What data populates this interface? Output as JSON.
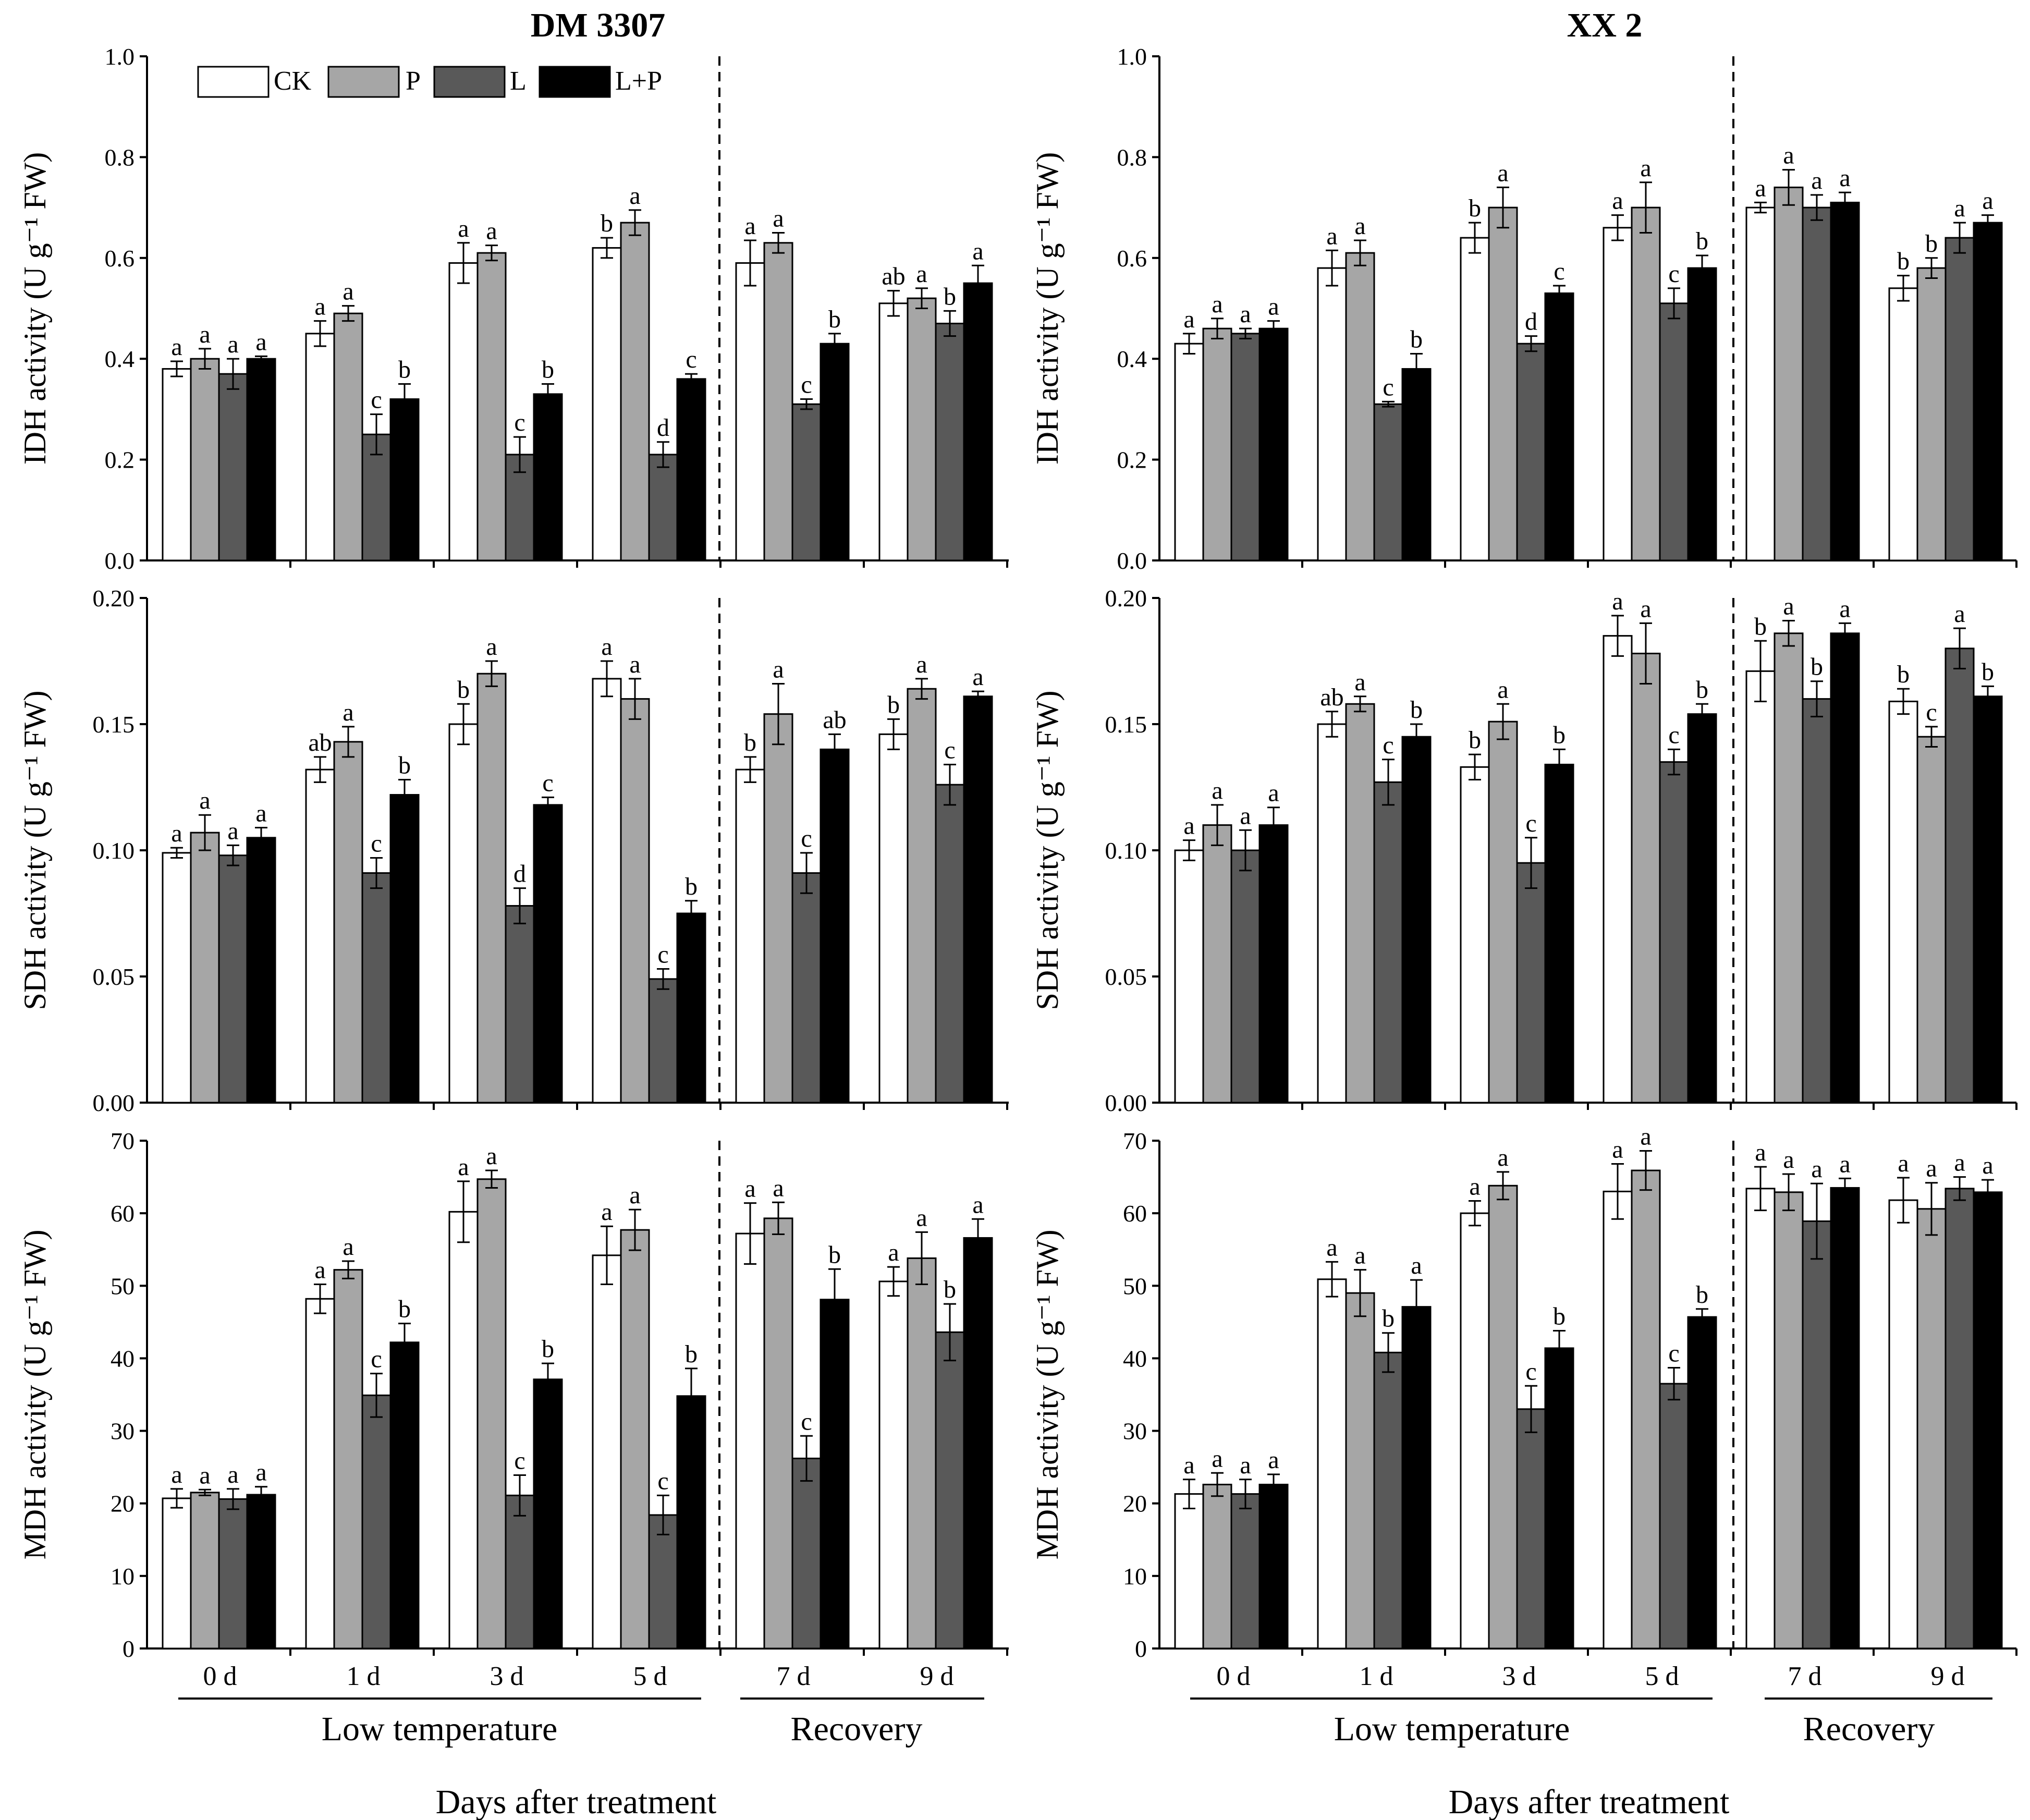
{
  "colors": {
    "CK": "#ffffff",
    "P": "#a6a6a6",
    "L": "#595959",
    "L+P": "#000000"
  },
  "legend": [
    "CK",
    "P",
    "L",
    "L+P"
  ],
  "days": [
    "0 d",
    "1 d",
    "3 d",
    "5 d",
    "7 d",
    "9 d"
  ],
  "groups": {
    "low": "Low temperature",
    "recovery": "Recovery"
  },
  "xtitle": "Days after treatment",
  "titles": [
    "DM 3307",
    "XX 2"
  ],
  "chart_data": [
    {
      "type": "bar",
      "panel": "DM 3307 - IDH",
      "title": "DM 3307",
      "ylabel": "IDH activity (U g⁻¹ FW)",
      "ylim": [
        0,
        1.0
      ],
      "yticks": [
        "0.0",
        "0.2",
        "0.4",
        "0.6",
        "0.8",
        "1.0"
      ],
      "categories": [
        "0 d",
        "1 d",
        "3 d",
        "5 d",
        "7 d",
        "9 d"
      ],
      "series": [
        {
          "name": "CK",
          "values": [
            0.38,
            0.45,
            0.59,
            0.62,
            0.59,
            0.51
          ],
          "errors": [
            0.015,
            0.025,
            0.04,
            0.02,
            0.045,
            0.025
          ],
          "letters": [
            "a",
            "a",
            "a",
            "b",
            "a",
            "ab"
          ]
        },
        {
          "name": "P",
          "values": [
            0.4,
            0.49,
            0.61,
            0.67,
            0.63,
            0.52
          ],
          "errors": [
            0.02,
            0.015,
            0.015,
            0.025,
            0.02,
            0.02
          ],
          "letters": [
            "a",
            "a",
            "a",
            "a",
            "a",
            "a"
          ]
        },
        {
          "name": "L",
          "values": [
            0.37,
            0.25,
            0.21,
            0.21,
            0.31,
            0.47
          ],
          "errors": [
            0.03,
            0.04,
            0.035,
            0.025,
            0.01,
            0.025
          ],
          "letters": [
            "a",
            "c",
            "c",
            "d",
            "c",
            "b"
          ]
        },
        {
          "name": "L+P",
          "values": [
            0.4,
            0.32,
            0.33,
            0.36,
            0.43,
            0.55
          ],
          "errors": [
            0.005,
            0.03,
            0.02,
            0.01,
            0.02,
            0.035
          ],
          "letters": [
            "a",
            "b",
            "b",
            "c",
            "b",
            "a"
          ]
        }
      ]
    },
    {
      "type": "bar",
      "panel": "XX 2 - IDH",
      "title": "XX 2",
      "ylabel": "IDH activity (U g⁻¹ FW)",
      "ylim": [
        0,
        1.0
      ],
      "yticks": [
        "0.0",
        "0.2",
        "0.4",
        "0.6",
        "0.8",
        "1.0"
      ],
      "categories": [
        "0 d",
        "1 d",
        "3 d",
        "5 d",
        "7 d",
        "9 d"
      ],
      "series": [
        {
          "name": "CK",
          "values": [
            0.43,
            0.58,
            0.64,
            0.66,
            0.7,
            0.54
          ],
          "errors": [
            0.02,
            0.035,
            0.03,
            0.025,
            0.01,
            0.025
          ],
          "letters": [
            "a",
            "a",
            "b",
            "a",
            "a",
            "b"
          ]
        },
        {
          "name": "P",
          "values": [
            0.46,
            0.61,
            0.7,
            0.7,
            0.74,
            0.58
          ],
          "errors": [
            0.02,
            0.025,
            0.04,
            0.05,
            0.035,
            0.02
          ],
          "letters": [
            "a",
            "a",
            "a",
            "a",
            "a",
            "b"
          ]
        },
        {
          "name": "L",
          "values": [
            0.45,
            0.31,
            0.43,
            0.51,
            0.7,
            0.64
          ],
          "errors": [
            0.01,
            0.005,
            0.015,
            0.03,
            0.025,
            0.03
          ],
          "letters": [
            "a",
            "c",
            "d",
            "c",
            "a",
            "a"
          ]
        },
        {
          "name": "L+P",
          "values": [
            0.46,
            0.38,
            0.53,
            0.58,
            0.71,
            0.67
          ],
          "errors": [
            0.015,
            0.03,
            0.015,
            0.025,
            0.02,
            0.015
          ],
          "letters": [
            "a",
            "b",
            "c",
            "b",
            "a",
            "a"
          ]
        }
      ]
    },
    {
      "type": "bar",
      "panel": "DM 3307 - SDH",
      "ylabel": "SDH activity (U g⁻¹ FW)",
      "ylim": [
        0,
        0.2
      ],
      "yticks": [
        "0.00",
        "0.05",
        "0.10",
        "0.15",
        "0.20"
      ],
      "categories": [
        "0 d",
        "1 d",
        "3 d",
        "5 d",
        "7 d",
        "9 d"
      ],
      "series": [
        {
          "name": "CK",
          "values": [
            0.099,
            0.132,
            0.15,
            0.168,
            0.132,
            0.146
          ],
          "errors": [
            0.002,
            0.005,
            0.008,
            0.007,
            0.005,
            0.006
          ],
          "letters": [
            "a",
            "ab",
            "b",
            "a",
            "b",
            "b"
          ]
        },
        {
          "name": "P",
          "values": [
            0.107,
            0.143,
            0.17,
            0.16,
            0.154,
            0.164
          ],
          "errors": [
            0.007,
            0.006,
            0.005,
            0.008,
            0.012,
            0.004
          ],
          "letters": [
            "a",
            "a",
            "a",
            "a",
            "a",
            "a"
          ]
        },
        {
          "name": "L",
          "values": [
            0.098,
            0.091,
            0.078,
            0.049,
            0.091,
            0.126
          ],
          "errors": [
            0.004,
            0.006,
            0.007,
            0.004,
            0.008,
            0.008
          ],
          "letters": [
            "a",
            "c",
            "d",
            "c",
            "c",
            "c"
          ]
        },
        {
          "name": "L+P",
          "values": [
            0.105,
            0.122,
            0.118,
            0.075,
            0.14,
            0.161
          ],
          "errors": [
            0.004,
            0.006,
            0.003,
            0.005,
            0.006,
            0.002
          ],
          "letters": [
            "a",
            "b",
            "c",
            "b",
            "ab",
            "a"
          ]
        }
      ]
    },
    {
      "type": "bar",
      "panel": "XX 2 - SDH",
      "ylabel": "SDH activity (U g⁻¹ FW)",
      "ylim": [
        0,
        0.2
      ],
      "yticks": [
        "0.00",
        "0.05",
        "0.10",
        "0.15",
        "0.20"
      ],
      "categories": [
        "0 d",
        "1 d",
        "3 d",
        "5 d",
        "7 d",
        "9 d"
      ],
      "series": [
        {
          "name": "CK",
          "values": [
            0.1,
            0.15,
            0.133,
            0.185,
            0.171,
            0.159
          ],
          "errors": [
            0.004,
            0.005,
            0.005,
            0.008,
            0.012,
            0.005
          ],
          "letters": [
            "a",
            "ab",
            "b",
            "a",
            "b",
            "b"
          ]
        },
        {
          "name": "P",
          "values": [
            0.11,
            0.158,
            0.151,
            0.178,
            0.186,
            0.145
          ],
          "errors": [
            0.008,
            0.003,
            0.007,
            0.012,
            0.005,
            0.004
          ],
          "letters": [
            "a",
            "a",
            "a",
            "a",
            "a",
            "c"
          ]
        },
        {
          "name": "L",
          "values": [
            0.1,
            0.127,
            0.095,
            0.135,
            0.16,
            0.18
          ],
          "errors": [
            0.008,
            0.009,
            0.01,
            0.005,
            0.007,
            0.008
          ],
          "letters": [
            "a",
            "c",
            "c",
            "c",
            "b",
            "a"
          ]
        },
        {
          "name": "L+P",
          "values": [
            0.11,
            0.145,
            0.134,
            0.154,
            0.186,
            0.161
          ],
          "errors": [
            0.007,
            0.005,
            0.006,
            0.004,
            0.004,
            0.004
          ],
          "letters": [
            "a",
            "b",
            "b",
            "b",
            "a",
            "b"
          ]
        }
      ]
    },
    {
      "type": "bar",
      "panel": "DM 3307 - MDH",
      "ylabel": "MDH activity (U g⁻¹ FW)",
      "ylim": [
        0,
        70
      ],
      "yticks": [
        "0",
        "10",
        "20",
        "30",
        "40",
        "50",
        "60",
        "70"
      ],
      "categories": [
        "0 d",
        "1 d",
        "3 d",
        "5 d",
        "7 d",
        "9 d"
      ],
      "series": [
        {
          "name": "CK",
          "values": [
            20.7,
            48.2,
            60.2,
            54.2,
            57.2,
            50.6
          ],
          "errors": [
            1.3,
            2.0,
            4.2,
            4.0,
            4.2,
            2.0
          ],
          "letters": [
            "a",
            "a",
            "a",
            "a",
            "a",
            "a"
          ]
        },
        {
          "name": "P",
          "values": [
            21.5,
            52.2,
            64.7,
            57.7,
            59.3,
            53.8
          ],
          "errors": [
            0.4,
            1.2,
            1.2,
            2.8,
            2.2,
            3.6
          ],
          "letters": [
            "a",
            "a",
            "a",
            "a",
            "a",
            "a"
          ]
        },
        {
          "name": "L",
          "values": [
            20.6,
            34.9,
            21.1,
            18.4,
            26.2,
            43.6
          ],
          "errors": [
            1.4,
            3.0,
            2.8,
            2.7,
            3.1,
            3.9
          ],
          "letters": [
            "a",
            "c",
            "c",
            "c",
            "c",
            "b"
          ]
        },
        {
          "name": "L+P",
          "values": [
            21.2,
            42.2,
            37.1,
            34.8,
            48.1,
            56.6
          ],
          "errors": [
            1.1,
            2.6,
            2.2,
            3.8,
            4.2,
            2.6
          ],
          "letters": [
            "a",
            "b",
            "b",
            "b",
            "b",
            "a"
          ]
        }
      ]
    },
    {
      "type": "bar",
      "panel": "XX 2 - MDH",
      "ylabel": "MDH activity (U g⁻¹ FW)",
      "ylim": [
        0,
        70
      ],
      "yticks": [
        "0",
        "10",
        "20",
        "30",
        "40",
        "50",
        "60",
        "70"
      ],
      "categories": [
        "0 d",
        "1 d",
        "3 d",
        "5 d",
        "7 d",
        "9 d"
      ],
      "series": [
        {
          "name": "CK",
          "values": [
            21.3,
            50.9,
            60.0,
            63.0,
            63.4,
            61.8
          ],
          "errors": [
            2.0,
            2.4,
            1.7,
            3.8,
            3.0,
            3.1
          ],
          "letters": [
            "a",
            "a",
            "a",
            "a",
            "a",
            "a"
          ]
        },
        {
          "name": "P",
          "values": [
            22.6,
            49.0,
            63.8,
            65.9,
            62.9,
            60.6
          ],
          "errors": [
            1.6,
            3.2,
            1.9,
            2.7,
            2.5,
            3.6
          ],
          "letters": [
            "a",
            "a",
            "a",
            "a",
            "a",
            "a"
          ]
        },
        {
          "name": "L",
          "values": [
            21.3,
            40.8,
            33.0,
            36.5,
            58.9,
            63.4
          ],
          "errors": [
            2.0,
            2.7,
            3.2,
            2.2,
            5.2,
            1.6
          ],
          "letters": [
            "a",
            "b",
            "c",
            "c",
            "a",
            "a"
          ]
        },
        {
          "name": "L+P",
          "values": [
            22.6,
            47.1,
            41.4,
            45.7,
            63.5,
            62.9
          ],
          "errors": [
            1.4,
            3.7,
            2.4,
            1.1,
            1.3,
            1.7
          ],
          "letters": [
            "a",
            "a",
            "b",
            "b",
            "a",
            "a"
          ]
        }
      ]
    }
  ]
}
